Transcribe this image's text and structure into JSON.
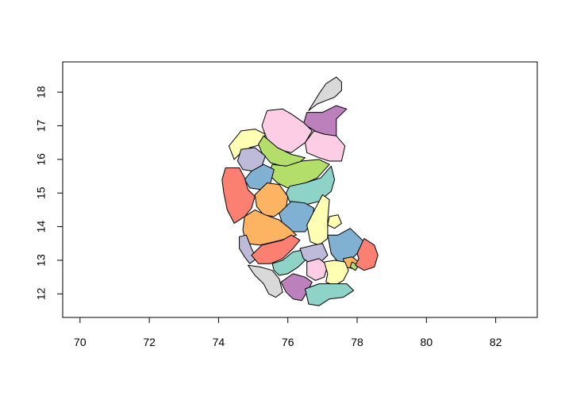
{
  "chart_data": {
    "type": "map",
    "title": "",
    "xlabel": "",
    "ylabel": "",
    "xlim": [
      69.5,
      83.2
    ],
    "ylim": [
      11.3,
      18.9
    ],
    "x_ticks": [
      70,
      72,
      74,
      76,
      78,
      80,
      82
    ],
    "y_ticks": [
      12,
      13,
      14,
      15,
      16,
      17,
      18
    ],
    "x_tick_labels": [
      "70",
      "72",
      "74",
      "76",
      "78",
      "80",
      "82"
    ],
    "y_tick_labels": [
      "12",
      "13",
      "14",
      "15",
      "16",
      "17",
      "18"
    ],
    "grid": false,
    "legend": "none",
    "palette": [
      "#8DD3C7",
      "#FFFFB3",
      "#BEBADA",
      "#FB8072",
      "#80B1D3",
      "#FDB462",
      "#B3DE69",
      "#FCCDE5",
      "#D9D9D9",
      "#BC80BD"
    ],
    "districts": [
      {
        "color": "#D9D9D9",
        "coords": [
          [
            77.4,
            18.45
          ],
          [
            77.55,
            18.3
          ],
          [
            77.55,
            18.05
          ],
          [
            77.35,
            17.85
          ],
          [
            77.1,
            17.75
          ],
          [
            76.85,
            17.65
          ],
          [
            76.6,
            17.45
          ],
          [
            76.9,
            17.95
          ],
          [
            77.1,
            18.25
          ]
        ]
      },
      {
        "color": "#BC80BD",
        "coords": [
          [
            76.55,
            17.4
          ],
          [
            77.0,
            17.4
          ],
          [
            77.4,
            17.6
          ],
          [
            77.7,
            17.5
          ],
          [
            77.4,
            17.2
          ],
          [
            77.4,
            16.65
          ],
          [
            77.0,
            16.7
          ],
          [
            76.7,
            16.9
          ],
          [
            76.45,
            17.05
          ]
        ]
      },
      {
        "color": "#FCCDE5",
        "coords": [
          [
            75.4,
            17.45
          ],
          [
            75.85,
            17.5
          ],
          [
            76.1,
            17.35
          ],
          [
            76.45,
            17.1
          ],
          [
            76.7,
            16.85
          ],
          [
            76.5,
            16.5
          ],
          [
            76.1,
            16.2
          ],
          [
            75.7,
            16.3
          ],
          [
            75.4,
            16.6
          ],
          [
            75.25,
            17.0
          ]
        ]
      },
      {
        "color": "#FCCDE5",
        "coords": [
          [
            76.75,
            16.85
          ],
          [
            77.05,
            16.75
          ],
          [
            77.4,
            16.7
          ],
          [
            77.65,
            16.4
          ],
          [
            77.55,
            15.95
          ],
          [
            77.2,
            15.95
          ],
          [
            76.9,
            16.05
          ],
          [
            76.55,
            16.2
          ],
          [
            76.5,
            16.5
          ]
        ]
      },
      {
        "color": "#FFFFB3",
        "coords": [
          [
            74.3,
            16.4
          ],
          [
            74.65,
            16.85
          ],
          [
            75.05,
            16.9
          ],
          [
            75.35,
            16.75
          ],
          [
            75.25,
            16.45
          ],
          [
            74.9,
            16.35
          ],
          [
            74.6,
            16.15
          ],
          [
            74.45,
            16.0
          ]
        ]
      },
      {
        "color": "#B3DE69",
        "coords": [
          [
            75.3,
            16.7
          ],
          [
            75.7,
            16.35
          ],
          [
            76.1,
            16.15
          ],
          [
            76.5,
            16.05
          ],
          [
            76.2,
            15.8
          ],
          [
            75.85,
            15.8
          ],
          [
            75.5,
            15.9
          ],
          [
            75.25,
            16.2
          ],
          [
            75.15,
            16.45
          ]
        ]
      },
      {
        "color": "#BEBADA",
        "coords": [
          [
            74.65,
            16.3
          ],
          [
            75.05,
            16.35
          ],
          [
            75.35,
            16.1
          ],
          [
            75.25,
            15.8
          ],
          [
            75.0,
            15.65
          ],
          [
            74.7,
            15.7
          ],
          [
            74.55,
            15.95
          ]
        ]
      },
      {
        "color": "#B3DE69",
        "coords": [
          [
            75.55,
            15.85
          ],
          [
            75.95,
            15.8
          ],
          [
            76.4,
            15.95
          ],
          [
            76.9,
            16.0
          ],
          [
            77.2,
            15.85
          ],
          [
            76.85,
            15.45
          ],
          [
            76.4,
            15.25
          ],
          [
            76.0,
            15.15
          ],
          [
            75.7,
            15.3
          ],
          [
            75.45,
            15.55
          ]
        ]
      },
      {
        "color": "#80B1D3",
        "coords": [
          [
            74.95,
            15.65
          ],
          [
            75.3,
            15.85
          ],
          [
            75.6,
            15.7
          ],
          [
            75.5,
            15.3
          ],
          [
            75.25,
            15.1
          ],
          [
            74.9,
            15.15
          ],
          [
            74.75,
            15.4
          ]
        ]
      },
      {
        "color": "#8DD3C7",
        "coords": [
          [
            76.05,
            15.2
          ],
          [
            76.5,
            15.3
          ],
          [
            76.95,
            15.45
          ],
          [
            77.25,
            15.8
          ],
          [
            77.35,
            15.4
          ],
          [
            77.25,
            15.05
          ],
          [
            76.9,
            14.75
          ],
          [
            76.5,
            14.65
          ],
          [
            76.05,
            14.75
          ],
          [
            75.95,
            15.0
          ]
        ]
      },
      {
        "color": "#FB8072",
        "coords": [
          [
            74.2,
            15.75
          ],
          [
            74.6,
            15.75
          ],
          [
            74.75,
            15.45
          ],
          [
            74.85,
            15.1
          ],
          [
            75.05,
            14.9
          ],
          [
            74.95,
            14.55
          ],
          [
            74.75,
            14.3
          ],
          [
            74.45,
            14.1
          ],
          [
            74.25,
            14.5
          ],
          [
            74.15,
            15.0
          ],
          [
            74.1,
            15.4
          ]
        ]
      },
      {
        "color": "#FDB462",
        "coords": [
          [
            75.05,
            14.95
          ],
          [
            75.4,
            15.3
          ],
          [
            75.75,
            15.25
          ],
          [
            76.0,
            14.9
          ],
          [
            75.95,
            14.55
          ],
          [
            75.6,
            14.3
          ],
          [
            75.3,
            14.35
          ],
          [
            75.1,
            14.6
          ]
        ]
      },
      {
        "color": "#80B1D3",
        "coords": [
          [
            75.75,
            14.4
          ],
          [
            76.1,
            14.75
          ],
          [
            76.5,
            14.7
          ],
          [
            76.75,
            14.55
          ],
          [
            76.7,
            14.15
          ],
          [
            76.5,
            13.85
          ],
          [
            76.1,
            13.85
          ],
          [
            75.85,
            14.05
          ]
        ]
      },
      {
        "color": "#FFFFB3",
        "coords": [
          [
            76.55,
            14.05
          ],
          [
            76.8,
            14.55
          ],
          [
            77.0,
            14.95
          ],
          [
            77.2,
            14.8
          ],
          [
            77.15,
            14.2
          ],
          [
            77.15,
            13.65
          ],
          [
            76.9,
            13.45
          ],
          [
            76.65,
            13.55
          ]
        ]
      },
      {
        "color": "#FFFFB3",
        "coords": [
          [
            77.2,
            14.3
          ],
          [
            77.45,
            14.35
          ],
          [
            77.55,
            14.1
          ],
          [
            77.35,
            13.95
          ],
          [
            77.15,
            14.05
          ]
        ]
      },
      {
        "color": "#FDB462",
        "coords": [
          [
            74.75,
            14.3
          ],
          [
            75.05,
            14.5
          ],
          [
            75.35,
            14.35
          ],
          [
            75.75,
            14.2
          ],
          [
            76.05,
            13.95
          ],
          [
            76.25,
            13.75
          ],
          [
            75.8,
            13.6
          ],
          [
            75.2,
            13.45
          ],
          [
            74.8,
            13.5
          ],
          [
            74.7,
            13.9
          ]
        ]
      },
      {
        "color": "#BEBADA",
        "coords": [
          [
            74.6,
            13.7
          ],
          [
            74.8,
            13.75
          ],
          [
            74.95,
            13.35
          ],
          [
            75.1,
            13.05
          ],
          [
            74.9,
            12.9
          ],
          [
            74.75,
            13.1
          ],
          [
            74.6,
            13.35
          ]
        ]
      },
      {
        "color": "#FB8072",
        "coords": [
          [
            74.95,
            13.15
          ],
          [
            75.25,
            13.45
          ],
          [
            75.85,
            13.6
          ],
          [
            76.1,
            13.75
          ],
          [
            76.35,
            13.6
          ],
          [
            76.15,
            13.35
          ],
          [
            75.85,
            13.05
          ],
          [
            75.5,
            12.9
          ],
          [
            75.15,
            12.9
          ]
        ]
      },
      {
        "color": "#8DD3C7",
        "coords": [
          [
            75.55,
            12.9
          ],
          [
            75.85,
            13.0
          ],
          [
            76.15,
            13.25
          ],
          [
            76.4,
            13.3
          ],
          [
            76.55,
            13.05
          ],
          [
            76.3,
            12.8
          ],
          [
            76.0,
            12.6
          ],
          [
            75.75,
            12.55
          ],
          [
            75.6,
            12.7
          ]
        ]
      },
      {
        "color": "#BEBADA",
        "coords": [
          [
            76.35,
            13.35
          ],
          [
            76.75,
            13.45
          ],
          [
            77.0,
            13.5
          ],
          [
            77.15,
            13.15
          ],
          [
            76.95,
            12.95
          ],
          [
            76.65,
            12.9
          ],
          [
            76.45,
            13.05
          ]
        ]
      },
      {
        "color": "#80B1D3",
        "coords": [
          [
            77.15,
            13.75
          ],
          [
            77.45,
            13.75
          ],
          [
            77.8,
            13.95
          ],
          [
            78.2,
            13.55
          ],
          [
            78.0,
            13.2
          ],
          [
            77.75,
            12.95
          ],
          [
            77.45,
            12.95
          ],
          [
            77.25,
            13.2
          ]
        ]
      },
      {
        "color": "#FDB462",
        "coords": [
          [
            77.6,
            13.05
          ],
          [
            77.85,
            13.1
          ],
          [
            78.05,
            12.95
          ],
          [
            77.9,
            12.75
          ],
          [
            77.65,
            12.8
          ]
        ]
      },
      {
        "color": "#B3DE69",
        "coords": [
          [
            77.85,
            12.95
          ],
          [
            78.05,
            12.85
          ],
          [
            77.95,
            12.7
          ],
          [
            77.8,
            12.8
          ]
        ]
      },
      {
        "color": "#FB8072",
        "coords": [
          [
            78.0,
            13.2
          ],
          [
            78.2,
            13.65
          ],
          [
            78.5,
            13.45
          ],
          [
            78.6,
            13.15
          ],
          [
            78.5,
            12.8
          ],
          [
            78.2,
            12.7
          ],
          [
            77.95,
            12.85
          ],
          [
            78.05,
            13.05
          ]
        ]
      },
      {
        "color": "#FCCDE5",
        "coords": [
          [
            76.55,
            12.95
          ],
          [
            76.9,
            13.05
          ],
          [
            77.15,
            12.85
          ],
          [
            77.05,
            12.5
          ],
          [
            76.8,
            12.4
          ],
          [
            76.55,
            12.55
          ]
        ]
      },
      {
        "color": "#FFFFB3",
        "coords": [
          [
            77.05,
            12.95
          ],
          [
            77.35,
            13.0
          ],
          [
            77.65,
            12.95
          ],
          [
            77.75,
            12.7
          ],
          [
            77.6,
            12.4
          ],
          [
            77.35,
            12.25
          ],
          [
            77.1,
            12.35
          ],
          [
            77.15,
            12.6
          ]
        ]
      },
      {
        "color": "#D9D9D9",
        "coords": [
          [
            74.85,
            12.85
          ],
          [
            75.2,
            12.8
          ],
          [
            75.55,
            12.7
          ],
          [
            75.75,
            12.45
          ],
          [
            75.85,
            12.05
          ],
          [
            75.65,
            11.9
          ],
          [
            75.45,
            12.0
          ],
          [
            75.3,
            12.3
          ],
          [
            75.05,
            12.55
          ]
        ]
      },
      {
        "color": "#BC80BD",
        "coords": [
          [
            75.8,
            12.35
          ],
          [
            76.15,
            12.6
          ],
          [
            76.5,
            12.5
          ],
          [
            76.7,
            12.35
          ],
          [
            76.55,
            12.05
          ],
          [
            76.4,
            11.8
          ],
          [
            76.15,
            11.85
          ],
          [
            75.95,
            12.05
          ]
        ]
      },
      {
        "color": "#8DD3C7",
        "coords": [
          [
            76.5,
            12.15
          ],
          [
            76.9,
            12.3
          ],
          [
            77.3,
            12.3
          ],
          [
            77.7,
            12.3
          ],
          [
            77.9,
            12.1
          ],
          [
            77.6,
            11.9
          ],
          [
            77.2,
            11.85
          ],
          [
            76.9,
            11.65
          ],
          [
            76.6,
            11.7
          ]
        ]
      }
    ]
  }
}
